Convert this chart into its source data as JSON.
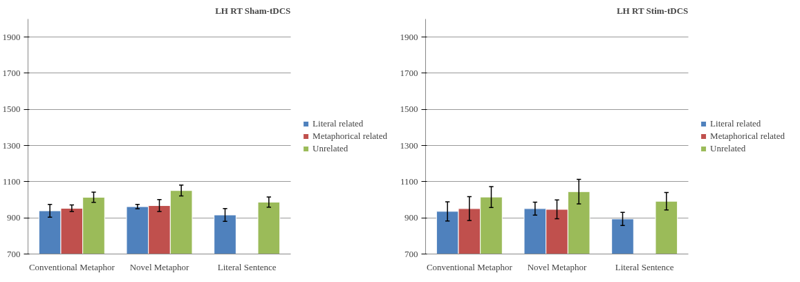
{
  "chart_data": [
    {
      "type": "bar",
      "title": "LH RT Sham-tDCS",
      "categories": [
        "Conventional Metaphor",
        "Novel Metaphor",
        "Literal Sentence"
      ],
      "ylim": [
        700,
        2000
      ],
      "yticks": [
        700,
        900,
        1100,
        1300,
        1500,
        1700,
        1900
      ],
      "grid": "y",
      "legend": "right",
      "series": [
        {
          "name": "Literal related",
          "color": "#4f81bd",
          "values": [
            939,
            962,
            916
          ],
          "errors": [
            35,
            12,
            35
          ]
        },
        {
          "name": "Metaphorical related",
          "color": "#c0504d",
          "values": [
            953,
            968,
            null
          ],
          "errors": [
            18,
            33,
            null
          ]
        },
        {
          "name": "Unrelated",
          "color": "#9bbb59",
          "values": [
            1014,
            1051,
            987
          ],
          "errors": [
            28,
            30,
            28
          ]
        }
      ]
    },
    {
      "type": "bar",
      "title": "LH RT Stim-tDCS",
      "categories": [
        "Conventional Metaphor",
        "Novel Metaphor",
        "Literal Sentence"
      ],
      "ylim": [
        700,
        2000
      ],
      "yticks": [
        700,
        900,
        1100,
        1300,
        1500,
        1700,
        1900
      ],
      "grid": "y",
      "legend": "right",
      "series": [
        {
          "name": "Literal related",
          "color": "#4f81bd",
          "values": [
            936,
            951,
            894
          ],
          "errors": [
            53,
            36,
            36
          ]
        },
        {
          "name": "Metaphorical related",
          "color": "#c0504d",
          "values": [
            951,
            947,
            null
          ],
          "errors": [
            66,
            52,
            null
          ]
        },
        {
          "name": "Unrelated",
          "color": "#9bbb59",
          "values": [
            1015,
            1045,
            992
          ],
          "errors": [
            58,
            68,
            48
          ]
        }
      ]
    }
  ]
}
